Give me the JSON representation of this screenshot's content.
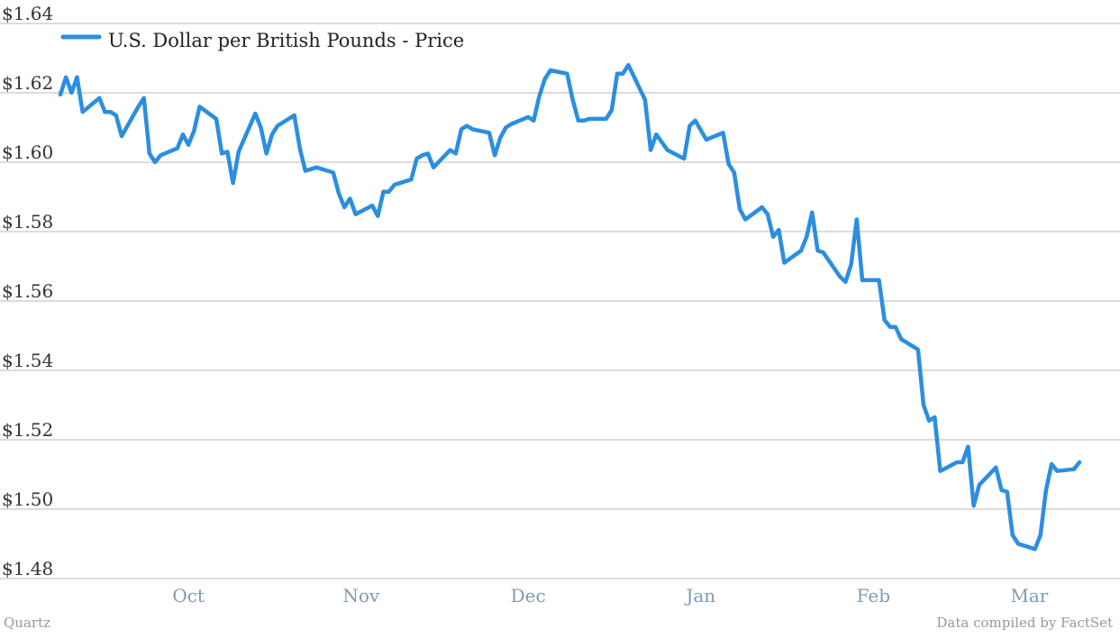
{
  "chart_data": {
    "type": "line",
    "legend_position": "top-left",
    "grid": true,
    "ylim": [
      1.48,
      1.64
    ],
    "yticks": [
      "$1.64",
      "$1.62",
      "$1.60",
      "$1.58",
      "$1.56",
      "$1.54",
      "$1.52",
      "$1.50",
      "$1.48"
    ],
    "xticks": [
      "Oct",
      "Nov",
      "Dec",
      "Jan",
      "Feb",
      "Mar"
    ],
    "series": [
      {
        "name": "U.S. Dollar per British Pounds - Price",
        "color": "#2b8ee0",
        "x": [
          "2014-09-08",
          "2014-09-09",
          "2014-09-10",
          "2014-09-11",
          "2014-09-12",
          "2014-09-15",
          "2014-09-16",
          "2014-09-17",
          "2014-09-18",
          "2014-09-19",
          "2014-09-22",
          "2014-09-23",
          "2014-09-24",
          "2014-09-25",
          "2014-09-26",
          "2014-09-29",
          "2014-09-30",
          "2014-10-01",
          "2014-10-02",
          "2014-10-03",
          "2014-10-06",
          "2014-10-07",
          "2014-10-08",
          "2014-10-09",
          "2014-10-10",
          "2014-10-13",
          "2014-10-14",
          "2014-10-15",
          "2014-10-16",
          "2014-10-17",
          "2014-10-20",
          "2014-10-21",
          "2014-10-22",
          "2014-10-23",
          "2014-10-24",
          "2014-10-27",
          "2014-10-28",
          "2014-10-29",
          "2014-10-30",
          "2014-10-31",
          "2014-11-03",
          "2014-11-04",
          "2014-11-05",
          "2014-11-06",
          "2014-11-07",
          "2014-11-10",
          "2014-11-11",
          "2014-11-12",
          "2014-11-13",
          "2014-11-14",
          "2014-11-17",
          "2014-11-18",
          "2014-11-19",
          "2014-11-20",
          "2014-11-21",
          "2014-11-24",
          "2014-11-25",
          "2014-11-26",
          "2014-11-27",
          "2014-11-28",
          "2014-12-01",
          "2014-12-02",
          "2014-12-03",
          "2014-12-04",
          "2014-12-05",
          "2014-12-08",
          "2014-12-09",
          "2014-12-10",
          "2014-12-11",
          "2014-12-12",
          "2014-12-15",
          "2014-12-16",
          "2014-12-17",
          "2014-12-18",
          "2014-12-19",
          "2014-12-22",
          "2014-12-23",
          "2014-12-24",
          "2014-12-26",
          "2014-12-29",
          "2014-12-30",
          "2014-12-31",
          "2015-01-02",
          "2015-01-05",
          "2015-01-06",
          "2015-01-07",
          "2015-01-08",
          "2015-01-09",
          "2015-01-12",
          "2015-01-13",
          "2015-01-14",
          "2015-01-15",
          "2015-01-16",
          "2015-01-19",
          "2015-01-20",
          "2015-01-21",
          "2015-01-22",
          "2015-01-23",
          "2015-01-26",
          "2015-01-27",
          "2015-01-28",
          "2015-01-29",
          "2015-01-30",
          "2015-02-02",
          "2015-02-03",
          "2015-02-04",
          "2015-02-05",
          "2015-02-06",
          "2015-02-09",
          "2015-02-10",
          "2015-02-11",
          "2015-02-12",
          "2015-02-13",
          "2015-02-16",
          "2015-02-17",
          "2015-02-18",
          "2015-02-19",
          "2015-02-20",
          "2015-02-23",
          "2015-02-24",
          "2015-02-25",
          "2015-02-26",
          "2015-02-27",
          "2015-03-02",
          "2015-03-03",
          "2015-03-04",
          "2015-03-05",
          "2015-03-06",
          "2015-03-09",
          "2015-03-10"
        ],
        "values": [
          1.6195,
          1.6245,
          1.62,
          1.6245,
          1.6145,
          1.6185,
          1.6145,
          1.6145,
          1.6135,
          1.6075,
          1.616,
          1.6185,
          1.6025,
          1.6,
          1.602,
          1.604,
          1.608,
          1.605,
          1.609,
          1.616,
          1.6125,
          1.6025,
          1.603,
          1.594,
          1.603,
          1.614,
          1.61,
          1.6025,
          1.608,
          1.6105,
          1.6135,
          1.604,
          1.5975,
          1.598,
          1.5985,
          1.597,
          1.591,
          1.587,
          1.5895,
          1.585,
          1.5875,
          1.5845,
          1.5915,
          1.5915,
          1.5935,
          1.595,
          1.601,
          1.602,
          1.6025,
          1.5985,
          1.6035,
          1.6025,
          1.6095,
          1.6105,
          1.6095,
          1.6085,
          1.602,
          1.607,
          1.61,
          1.611,
          1.613,
          1.612,
          1.619,
          1.624,
          1.6265,
          1.6255,
          1.618,
          1.612,
          1.612,
          1.6125,
          1.6125,
          1.615,
          1.6255,
          1.6255,
          1.628,
          1.618,
          1.6035,
          1.608,
          1.6035,
          1.601,
          1.6105,
          1.612,
          1.6065,
          1.6085,
          1.5995,
          1.597,
          1.5865,
          1.5835,
          1.587,
          1.585,
          1.5785,
          1.5805,
          1.571,
          1.5745,
          1.5785,
          1.5855,
          1.5745,
          1.574,
          1.567,
          1.5655,
          1.5705,
          1.5835,
          1.566,
          1.566,
          1.5545,
          1.5525,
          1.5525,
          1.549,
          1.546,
          1.53,
          1.5255,
          1.5265,
          1.511,
          1.5135,
          1.5135,
          1.518,
          1.501,
          1.507,
          1.512,
          1.5055,
          1.505,
          1.4925,
          1.49,
          1.4885,
          1.4925,
          1.5055,
          1.513,
          1.511,
          1.5115,
          1.5135
        ]
      }
    ]
  },
  "footer": {
    "left": "Quartz",
    "right": "Data compiled by FactSet"
  }
}
